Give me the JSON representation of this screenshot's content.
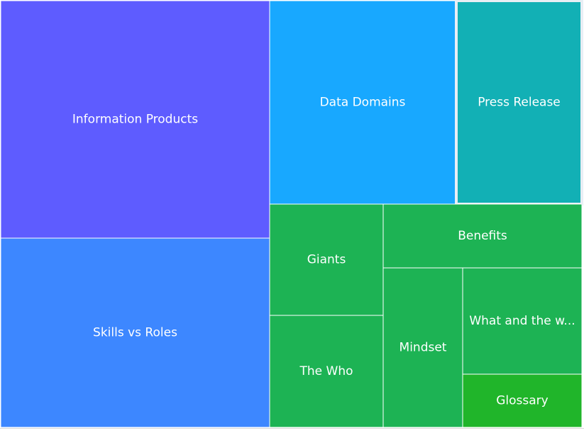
{
  "chart_data": {
    "type": "treemap",
    "title": "",
    "tiles": [
      {
        "label": "Information Products",
        "display_label": "Information Products",
        "value": 126,
        "color": "#5e5cff",
        "selected": false
      },
      {
        "label": "Skills vs Roles",
        "display_label": "Skills vs Roles",
        "value": 101,
        "color": "#3d87ff",
        "selected": false
      },
      {
        "label": "Data Domains",
        "display_label": "Data Domains",
        "value": 75,
        "color": "#18a8ff",
        "selected": false
      },
      {
        "label": "Press Release",
        "display_label": "Press Release",
        "value": 51,
        "color": "#12b0b5",
        "selected": true
      },
      {
        "label": "Giants",
        "display_label": "Giants",
        "value": 25,
        "color": "#1db354",
        "selected": false
      },
      {
        "label": "The Who",
        "display_label": "The Who",
        "value": 25,
        "color": "#1db354",
        "selected": false
      },
      {
        "label": "Benefits",
        "display_label": "Benefits",
        "value": 25,
        "color": "#1db354",
        "selected": false
      },
      {
        "label": "Mindset",
        "display_label": "Mindset",
        "value": 18,
        "color": "#1db354",
        "selected": false
      },
      {
        "label": "What and the w...",
        "display_label": "What and the w...",
        "value": 15,
        "color": "#1db354",
        "selected": false
      },
      {
        "label": "Glossary",
        "display_label": "Glossary",
        "value": 7,
        "color": "#20b52a",
        "selected": false
      }
    ]
  }
}
